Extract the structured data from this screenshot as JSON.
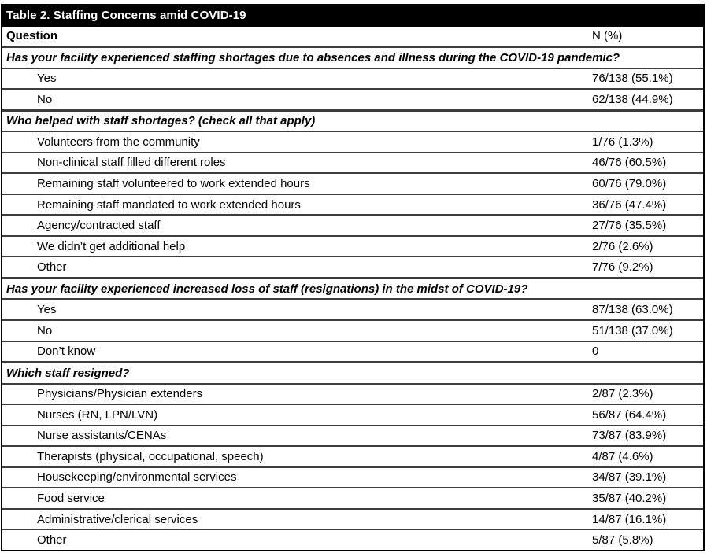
{
  "title": "Table 2. Staffing Concerns amid COVID-19",
  "columns": {
    "question": "Question",
    "n_pct": "N (%)"
  },
  "colors": {
    "title_bg": "#000000",
    "title_text": "#ffffff",
    "outer_border": "#000000",
    "row_border": "#3d3d3d"
  },
  "rows": [
    {
      "type": "section",
      "label": "Has your facility experienced staffing shortages due to absences and illness during the COVID-19 pandemic?",
      "value": ""
    },
    {
      "type": "data",
      "label": "Yes",
      "value": "76/138 (55.1%)"
    },
    {
      "type": "data",
      "label": "No",
      "value": "62/138 (44.9%)"
    },
    {
      "type": "section",
      "label": "Who helped with staff shortages? (check all that apply)",
      "value": ""
    },
    {
      "type": "data",
      "label": "Volunteers from the community",
      "value": "1/76 (1.3%)"
    },
    {
      "type": "data",
      "label": "Non-clinical staff filled different roles",
      "value": "46/76 (60.5%)"
    },
    {
      "type": "data",
      "label": "Remaining staff volunteered to work extended hours",
      "value": "60/76 (79.0%)"
    },
    {
      "type": "data",
      "label": "Remaining staff mandated to work extended hours",
      "value": "36/76 (47.4%)"
    },
    {
      "type": "data",
      "label": "Agency/contracted staff",
      "value": "27/76 (35.5%)"
    },
    {
      "type": "data",
      "label": "We didn’t get additional help",
      "value": "2/76 (2.6%)"
    },
    {
      "type": "data",
      "label": "Other",
      "value": "7/76 (9.2%)"
    },
    {
      "type": "section",
      "label": "Has your facility experienced increased loss of staff (resignations) in the midst of COVID-19?",
      "value": ""
    },
    {
      "type": "data",
      "label": "Yes",
      "value": "87/138 (63.0%)"
    },
    {
      "type": "data",
      "label": "No",
      "value": "51/138 (37.0%)"
    },
    {
      "type": "data",
      "label": "Don’t know",
      "value": "0"
    },
    {
      "type": "section",
      "label": "Which staff resigned?",
      "value": ""
    },
    {
      "type": "data",
      "label": "Physicians/Physician extenders",
      "value": "2/87 (2.3%)"
    },
    {
      "type": "data",
      "label": "Nurses (RN, LPN/LVN)",
      "value": "56/87 (64.4%)"
    },
    {
      "type": "data",
      "label": "Nurse assistants/CENAs",
      "value": "73/87 (83.9%)"
    },
    {
      "type": "data",
      "label": "Therapists (physical, occupational, speech)",
      "value": "4/87 (4.6%)"
    },
    {
      "type": "data",
      "label": "Housekeeping/environmental services",
      "value": "34/87 (39.1%)"
    },
    {
      "type": "data",
      "label": "Food service",
      "value": "35/87 (40.2%)"
    },
    {
      "type": "data",
      "label": "Administrative/clerical services",
      "value": "14/87 (16.1%)"
    },
    {
      "type": "data",
      "label": "Other",
      "value": "5/87 (5.8%)"
    }
  ]
}
